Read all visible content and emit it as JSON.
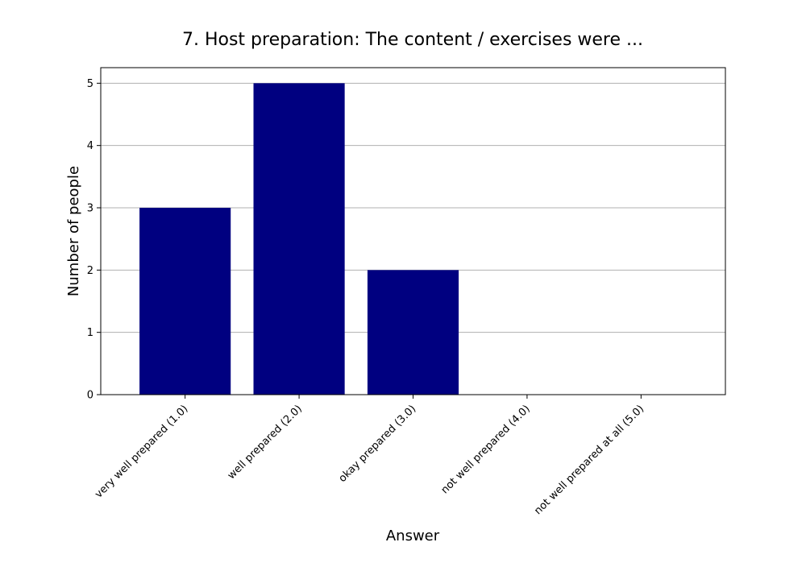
{
  "chart_data": {
    "type": "bar",
    "title": "7. Host preparation: The content / exercises were ...",
    "xlabel": "Answer",
    "ylabel": "Number of people",
    "categories": [
      "very well prepared (1.0)",
      "well prepared (2.0)",
      "okay prepared (3.0)",
      "not well prepared (4.0)",
      "not well prepared at all (5.0)"
    ],
    "values": [
      3,
      5,
      2,
      0,
      0
    ],
    "ylim": [
      0,
      5.25
    ],
    "yticks": [
      0,
      1,
      2,
      3,
      4,
      5
    ],
    "grid": "y",
    "bar_color": "#000080",
    "grid_color": "#b0b0b0"
  }
}
